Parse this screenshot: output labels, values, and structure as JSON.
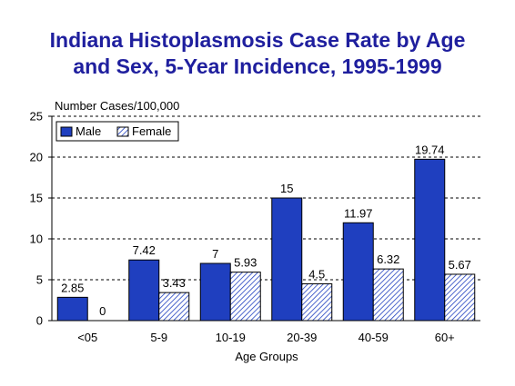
{
  "chart_data": {
    "type": "bar",
    "title": "Indiana Histoplasmosis Case Rate by Age\nand Sex, 5-Year Incidence, 1995-1999",
    "ylabel": "Number Cases/100,000",
    "xlabel": "Age Groups",
    "categories": [
      "<05",
      "5-9",
      "10-19",
      "20-39",
      "40-59",
      "60+"
    ],
    "series": [
      {
        "name": "Male",
        "values": [
          2.85,
          7.42,
          7,
          15,
          11.97,
          19.74
        ],
        "labels": [
          "2.85",
          "7.42",
          "7",
          "15",
          "11.97",
          "19.74"
        ],
        "fill": "solid",
        "color": "#1f3fbf"
      },
      {
        "name": "Female",
        "values": [
          0,
          3.43,
          5.93,
          4.5,
          6.32,
          5.67
        ],
        "labels": [
          "0",
          "3.43",
          "5.93",
          "4.5",
          "6.32",
          "5.67"
        ],
        "fill": "hatch",
        "color": "#1f3fbf"
      }
    ],
    "ylim": [
      0,
      25
    ],
    "yticks": [
      0,
      5,
      10,
      15,
      20,
      25
    ],
    "grid": "dashed horizontal",
    "legend": "top-left"
  }
}
